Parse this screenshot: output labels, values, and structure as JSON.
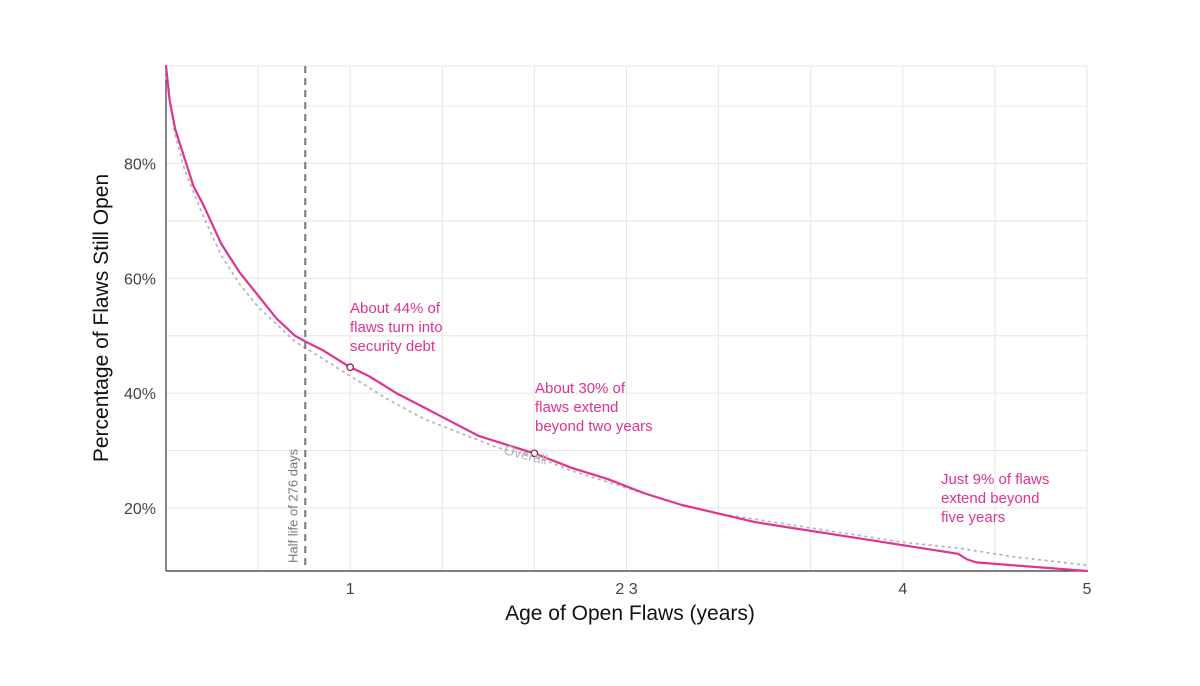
{
  "chart_data": {
    "type": "line",
    "xlabel": "Age of Open Flaws (years)",
    "ylabel": "Percentage of Flaws Still Open",
    "x_ticks": [
      {
        "value": 1,
        "label": "1"
      },
      {
        "value": 2.5,
        "label": "2 3"
      },
      {
        "value": 4,
        "label": "4"
      },
      {
        "value": 5,
        "label": "5"
      }
    ],
    "y_ticks": [
      {
        "value": 20,
        "label": "20%"
      },
      {
        "value": 40,
        "label": "40%"
      },
      {
        "value": 60,
        "label": "60%"
      },
      {
        "value": 80,
        "label": "80%"
      }
    ],
    "xlim": [
      0,
      5
    ],
    "ylim": [
      9,
      97
    ],
    "grid": true,
    "series": [
      {
        "color": "#e0338f",
        "x": [
          0,
          0.02,
          0.05,
          0.1,
          0.15,
          0.2,
          0.3,
          0.4,
          0.5,
          0.6,
          0.7,
          0.756,
          0.85,
          1.0,
          1.1,
          1.25,
          1.4,
          1.55,
          1.7,
          1.85,
          2.0,
          2.2,
          2.4,
          2.6,
          2.8,
          3.0,
          3.2,
          3.4,
          3.6,
          3.8,
          4.0,
          4.2,
          4.3,
          4.35,
          4.4,
          4.6,
          4.8,
          5.0
        ],
        "y": [
          97,
          91,
          86,
          81,
          76,
          73,
          66,
          61,
          57,
          53,
          50,
          49,
          47.5,
          44.5,
          43,
          40,
          37.5,
          35,
          32.5,
          31,
          29.5,
          27,
          25,
          22.5,
          20.5,
          19,
          17.5,
          16.5,
          15.5,
          14.5,
          13.5,
          12.5,
          12,
          11,
          10.5,
          10,
          9.5,
          9
        ]
      },
      {
        "name": "Overall",
        "color": "#b5b5b5",
        "style": "dotted",
        "x": [
          0,
          0.05,
          0.1,
          0.2,
          0.3,
          0.4,
          0.5,
          0.6,
          0.7,
          0.8,
          0.9,
          1.0,
          1.2,
          1.4,
          1.6,
          1.8,
          2.0,
          2.2,
          2.5,
          2.8,
          3.0,
          3.3,
          3.6,
          4.0,
          4.3,
          4.6,
          5.0
        ],
        "y": [
          95,
          85,
          79,
          71,
          64,
          59,
          55,
          52,
          49,
          47,
          45,
          43,
          39,
          35.5,
          33,
          30.5,
          29,
          26.5,
          23.5,
          20.5,
          19,
          17.5,
          16,
          14,
          13,
          11.5,
          10
        ]
      }
    ],
    "highlight_points": [
      {
        "x": 1.0,
        "y": 44.5
      },
      {
        "x": 2.0,
        "y": 29.5
      }
    ],
    "reference_line": {
      "x": 0.756,
      "label": "Half life of 276 days"
    },
    "annotations": [
      {
        "x": 1.0,
        "y": 45,
        "lines": [
          "About 44% of",
          "flaws turn into",
          "security debt"
        ]
      },
      {
        "x": 2.0,
        "y": 30,
        "lines": [
          "About 30% of",
          "flaws extend",
          "beyond two years"
        ]
      },
      {
        "x": 4.2,
        "y": 14,
        "lines": [
          "Just 9% of flaws",
          "extend beyond",
          "five years"
        ]
      }
    ],
    "overall_label": {
      "text": "Overall",
      "x": 1.9,
      "y": 30
    }
  },
  "colors": {
    "main": "#e0338f",
    "overall": "#b5b5b5",
    "grid": "#e6e6e6",
    "refline": "#777777"
  }
}
